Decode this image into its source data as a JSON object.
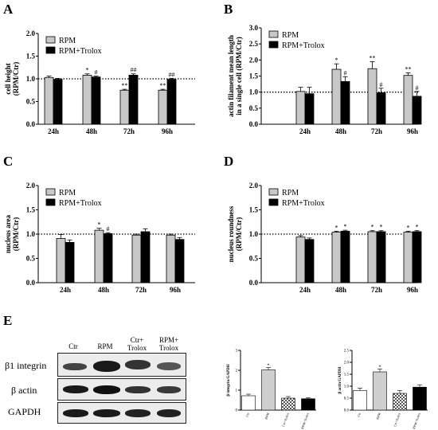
{
  "panels": {
    "A": "A",
    "B": "B",
    "C": "C",
    "D": "D",
    "E": "E"
  },
  "colors": {
    "rpm": "#c8c8c8",
    "trolox": "#000000"
  },
  "chart_data": [
    {
      "id": "A",
      "type": "bar",
      "categories": [
        "24h",
        "48h",
        "72h",
        "96h"
      ],
      "ylabel": "cell height (RPM/Ctr)",
      "ylim": [
        0,
        2.0
      ],
      "yticks": [
        "0.0",
        "0.5",
        "1.0",
        "1.5",
        "2.0"
      ],
      "reference_line": 1.0,
      "legend": "top-left",
      "series": [
        {
          "name": "RPM",
          "values": [
            1.03,
            1.08,
            0.75,
            0.75
          ],
          "errors": [
            0.03,
            0.03,
            0.02,
            0.02
          ],
          "marks": [
            "",
            "*",
            "**",
            "**"
          ]
        },
        {
          "name": "RPM+Trolox",
          "values": [
            0.99,
            1.04,
            1.08,
            0.99
          ],
          "errors": [
            0.02,
            0.02,
            0.03,
            0.02
          ],
          "marks": [
            "",
            "#",
            "##",
            "##"
          ]
        }
      ]
    },
    {
      "id": "B",
      "type": "bar",
      "categories": [
        "24h",
        "48h",
        "72h",
        "96h"
      ],
      "ylabel": "actin filament mean length in a single cell (RPM/Ctr)",
      "ylim": [
        0,
        3.0
      ],
      "yticks": [
        "0.0",
        "0.5",
        "1.0",
        "1.5",
        "2.0",
        "2.5",
        "3.0"
      ],
      "reference_line": 1.0,
      "legend": "top-left",
      "series": [
        {
          "name": "RPM",
          "values": [
            1.02,
            1.71,
            1.73,
            1.52
          ],
          "errors": [
            0.13,
            0.17,
            0.22,
            0.08
          ],
          "marks": [
            "",
            "*",
            "**",
            "**"
          ]
        },
        {
          "name": "RPM+Trolox",
          "values": [
            0.95,
            1.33,
            0.98,
            0.87
          ],
          "errors": [
            0.2,
            0.15,
            0.14,
            0.15
          ],
          "marks": [
            "",
            "#",
            "#",
            "#"
          ]
        }
      ]
    },
    {
      "id": "C",
      "type": "bar",
      "categories": [
        "24h",
        "48h",
        "72h",
        "96h"
      ],
      "ylabel": "nucleus area (RPM/Ctr)",
      "ylim": [
        0,
        2.0
      ],
      "yticks": [
        "0.0",
        "0.5",
        "1.0",
        "1.5",
        "2.0"
      ],
      "reference_line": 1.0,
      "legend": "top-left",
      "series": [
        {
          "name": "RPM",
          "values": [
            0.91,
            1.08,
            0.98,
            0.98
          ],
          "errors": [
            0.08,
            0.04,
            0.02,
            0.02
          ],
          "marks": [
            "",
            "*",
            "",
            ""
          ]
        },
        {
          "name": "RPM+Trolox",
          "values": [
            0.83,
            1.01,
            1.05,
            0.89
          ],
          "errors": [
            0.05,
            0.02,
            0.06,
            0.04
          ],
          "marks": [
            "",
            "#",
            "",
            ""
          ]
        }
      ]
    },
    {
      "id": "D",
      "type": "bar",
      "categories": [
        "24h",
        "48h",
        "72h",
        "96h"
      ],
      "ylabel": "nucleus roundness (RPM/Ctr)",
      "ylim": [
        0,
        2.0
      ],
      "yticks": [
        "0.0",
        "0.5",
        "1.0",
        "1.5",
        "2.0"
      ],
      "reference_line": 1.0,
      "legend": "top-left",
      "series": [
        {
          "name": "RPM",
          "values": [
            0.94,
            1.04,
            1.05,
            1.04
          ],
          "errors": [
            0.03,
            0.02,
            0.02,
            0.02
          ],
          "marks": [
            "",
            "*",
            "*",
            "*"
          ]
        },
        {
          "name": "RPM+Trolox",
          "values": [
            0.89,
            1.06,
            1.05,
            1.05
          ],
          "errors": [
            0.03,
            0.02,
            0.02,
            0.02
          ],
          "marks": [
            "",
            "*",
            "*",
            "*"
          ]
        }
      ]
    },
    {
      "id": "E1",
      "type": "bar",
      "categories": [
        "Ctr",
        "RPM",
        "Ctr+Trolox",
        "RPM+Trolox"
      ],
      "ylabel": "β integrin/GAPDH",
      "ylim": [
        0,
        3
      ],
      "yticks": [
        "0",
        "1",
        "2",
        "3"
      ],
      "fills": [
        "white",
        "lightgray",
        "checker",
        "black"
      ],
      "values": [
        0.72,
        2.02,
        0.6,
        0.57
      ],
      "errors": [
        0.08,
        0.12,
        0.08,
        0.05
      ],
      "marks": [
        "",
        "*",
        "",
        ""
      ]
    },
    {
      "id": "E2",
      "type": "bar",
      "categories": [
        "Ctr",
        "RPM",
        "Ctr+Trolox",
        "RPM+Trolox"
      ],
      "ylabel": "β actin/GAPDH",
      "ylim": [
        0,
        2.5
      ],
      "yticks": [
        "0.0",
        "0.5",
        "1.0",
        "1.5",
        "2.0",
        "2.5"
      ],
      "fills": [
        "white",
        "lightgray",
        "checker",
        "black"
      ],
      "values": [
        0.82,
        1.6,
        0.7,
        0.96
      ],
      "errors": [
        0.1,
        0.12,
        0.12,
        0.1
      ],
      "marks": [
        "",
        "*",
        "",
        ""
      ]
    }
  ],
  "blot": {
    "lanes": [
      "Ctr",
      "RPM",
      "Ctr+\nTrolox",
      "RPM+\nTrolox"
    ],
    "rows": [
      "β1 integrin",
      "β actin",
      "GAPDH"
    ]
  }
}
